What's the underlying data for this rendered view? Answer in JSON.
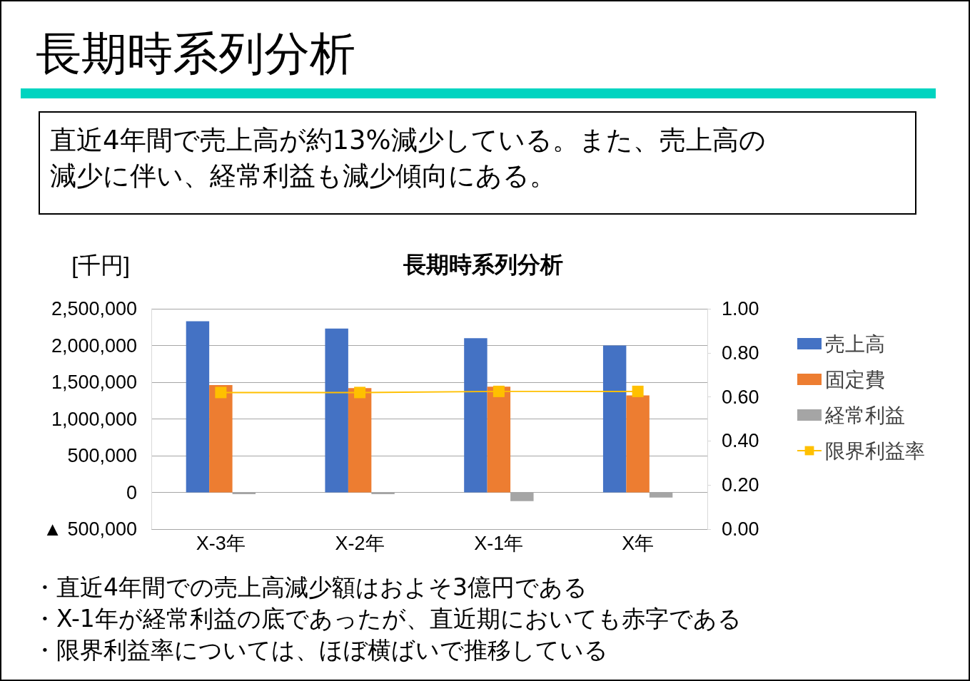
{
  "chart_data": {
    "type": "bar",
    "title": "長期時系列分析",
    "ylabel": "[千円]",
    "categories": [
      "X-3年",
      "X-2年",
      "X-1年",
      "X年"
    ],
    "series": [
      {
        "name": "売上高",
        "color": "#4472c4",
        "values": [
          2330000,
          2230000,
          2100000,
          2000000
        ]
      },
      {
        "name": "固定費",
        "color": "#ed7d31",
        "values": [
          1460000,
          1420000,
          1440000,
          1320000
        ]
      },
      {
        "name": "経常利益",
        "color": "#a5a5a5",
        "values": [
          -25000,
          -25000,
          -120000,
          -70000
        ]
      },
      {
        "name": "限界利益率",
        "color": "#ffc000",
        "type": "line",
        "axis": "y2",
        "values": [
          0.62,
          0.62,
          0.625,
          0.625
        ]
      }
    ],
    "ylim": [
      -500000,
      2500000
    ],
    "yticks": [
      {
        "value": -500000,
        "label": "▲ 500,000"
      },
      {
        "value": 0,
        "label": "0"
      },
      {
        "value": 500000,
        "label": "500,000"
      },
      {
        "value": 1000000,
        "label": "1,000,000"
      },
      {
        "value": 1500000,
        "label": "1,500,000"
      },
      {
        "value": 2000000,
        "label": "2,000,000"
      },
      {
        "value": 2500000,
        "label": "2,500,000"
      }
    ],
    "y2lim": [
      0,
      1
    ],
    "y2ticks": [
      {
        "value": 0,
        "label": "0.00"
      },
      {
        "value": 0.2,
        "label": "0.20"
      },
      {
        "value": 0.4,
        "label": "0.40"
      },
      {
        "value": 0.6,
        "label": "0.60"
      },
      {
        "value": 0.8,
        "label": "0.80"
      },
      {
        "value": 1,
        "label": "1.00"
      }
    ],
    "grid": "y",
    "legend": "right",
    "marker": "square",
    "annotations": [
      "長期時系列分析",
      "直近4年間で売上高が約13%減少している。また、売上高の",
      "減少に伴い、経常利益も減少傾向にある。",
      "・直近4年間での売上高減少額はおよそ3億円である",
      "・X-1年が経常利益の底であったが、直近期においても赤字である",
      "・限界利益率については、ほぼ横ばいで推移している"
    ]
  }
}
